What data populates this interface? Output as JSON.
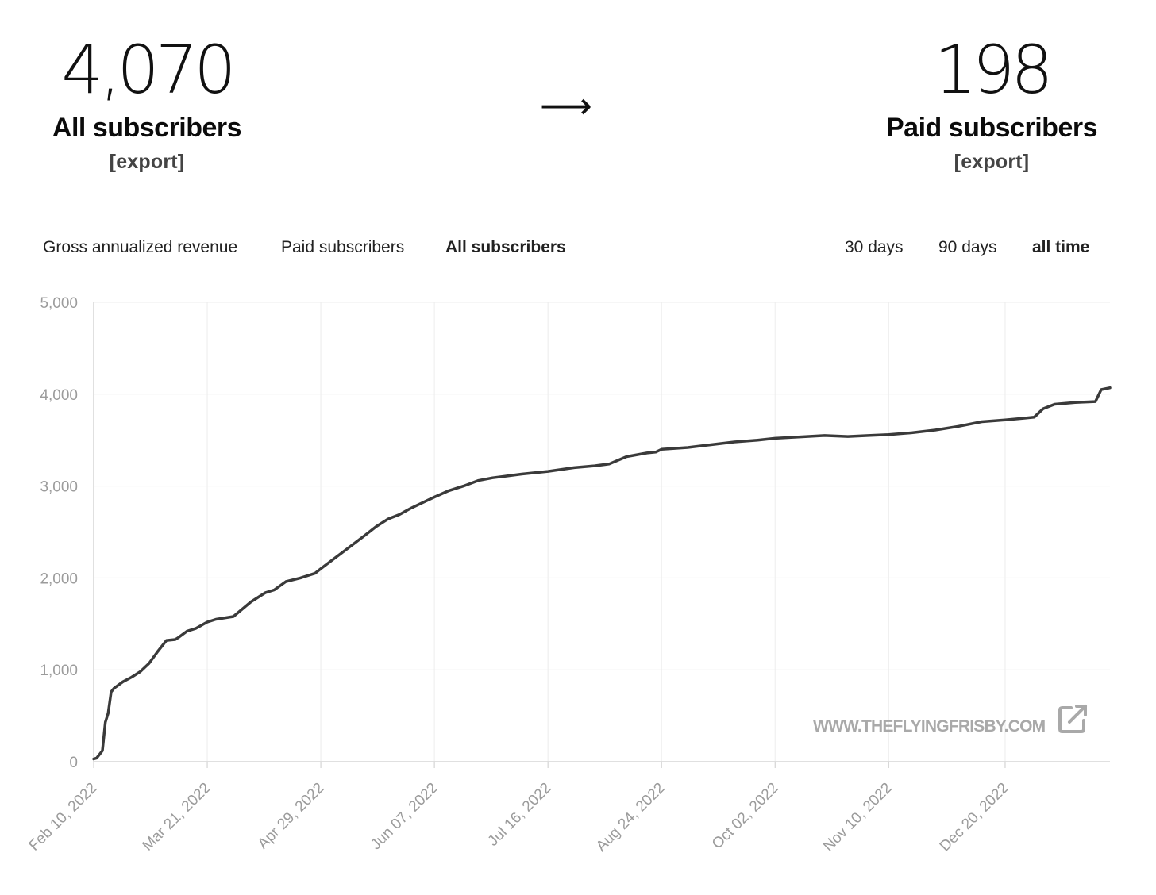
{
  "summary": {
    "left": {
      "number": "4,070",
      "label": "All subscribers",
      "export": "[export]"
    },
    "arrow": "⟶",
    "right": {
      "number": "198",
      "label": "Paid subscribers",
      "export": "[export]"
    }
  },
  "metric_tabs": [
    {
      "label": "Gross annualized revenue",
      "active": false
    },
    {
      "label": "Paid subscribers",
      "active": false
    },
    {
      "label": "All subscribers",
      "active": true
    }
  ],
  "range_tabs": [
    {
      "label": "30 days",
      "active": false
    },
    {
      "label": "90 days",
      "active": false
    },
    {
      "label": "all time",
      "active": true
    }
  ],
  "watermark": {
    "text": "WWW.THEFLYINGFRISBY.COM",
    "icon": "external-link-icon"
  },
  "colors": {
    "line": "#3a3a3a",
    "grid": "#ececec",
    "axis_text": "#9b9b9b",
    "watermark": "#a9a9a9"
  },
  "chart_data": {
    "type": "line",
    "title": "",
    "xlabel": "",
    "ylabel": "",
    "ylim": [
      0,
      5000
    ],
    "yticks": [
      "0",
      "1,000",
      "2,000",
      "3,000",
      "4,000",
      "5,000"
    ],
    "xticks": [
      "Feb 10, 2022",
      "Mar 21, 2022",
      "Apr 29, 2022",
      "Jun 07, 2022",
      "Jul 16, 2022",
      "Aug 24, 2022",
      "Oct 02, 2022",
      "Nov 10, 2022",
      "Dec 20, 2022"
    ],
    "x_range": [
      "2022-02-10",
      "2023-01-25"
    ],
    "grid": true,
    "legend": "none",
    "series": [
      {
        "x": [
          "2022-02-10",
          "2022-02-11",
          "2022-02-13",
          "2022-02-14",
          "2022-02-15",
          "2022-02-16",
          "2022-02-17",
          "2022-02-20",
          "2022-02-23",
          "2022-02-26",
          "2022-03-01",
          "2022-03-04",
          "2022-03-07",
          "2022-03-10",
          "2022-03-11",
          "2022-03-14",
          "2022-03-17",
          "2022-03-21",
          "2022-03-24",
          "2022-03-30",
          "2022-04-05",
          "2022-04-10",
          "2022-04-13",
          "2022-04-17",
          "2022-04-22",
          "2022-04-27",
          "2022-04-29",
          "2022-05-04",
          "2022-05-09",
          "2022-05-14",
          "2022-05-18",
          "2022-05-22",
          "2022-05-26",
          "2022-05-30",
          "2022-06-03",
          "2022-06-07",
          "2022-06-12",
          "2022-06-17",
          "2022-06-22",
          "2022-06-27",
          "2022-07-02",
          "2022-07-07",
          "2022-07-16",
          "2022-07-25",
          "2022-08-01",
          "2022-08-06",
          "2022-08-12",
          "2022-08-19",
          "2022-08-22",
          "2022-08-24",
          "2022-09-02",
          "2022-09-10",
          "2022-09-18",
          "2022-09-26",
          "2022-10-02",
          "2022-10-13",
          "2022-10-19",
          "2022-10-27",
          "2022-11-03",
          "2022-11-10",
          "2022-11-18",
          "2022-11-26",
          "2022-12-04",
          "2022-12-12",
          "2022-12-20",
          "2022-12-27",
          "2022-12-30",
          "2023-01-02",
          "2023-01-06",
          "2023-01-13",
          "2023-01-20",
          "2023-01-22",
          "2023-01-25"
        ],
        "values": [
          30,
          40,
          120,
          430,
          530,
          760,
          800,
          870,
          920,
          980,
          1070,
          1200,
          1320,
          1330,
          1350,
          1420,
          1450,
          1520,
          1550,
          1580,
          1740,
          1840,
          1870,
          1960,
          2000,
          2050,
          2100,
          2220,
          2340,
          2460,
          2560,
          2640,
          2690,
          2760,
          2820,
          2880,
          2950,
          3000,
          3060,
          3090,
          3110,
          3130,
          3160,
          3200,
          3220,
          3240,
          3320,
          3360,
          3370,
          3400,
          3420,
          3450,
          3480,
          3500,
          3520,
          3540,
          3550,
          3540,
          3550,
          3560,
          3580,
          3610,
          3650,
          3700,
          3720,
          3740,
          3750,
          3840,
          3890,
          3910,
          3920,
          4050,
          4070
        ]
      }
    ]
  }
}
